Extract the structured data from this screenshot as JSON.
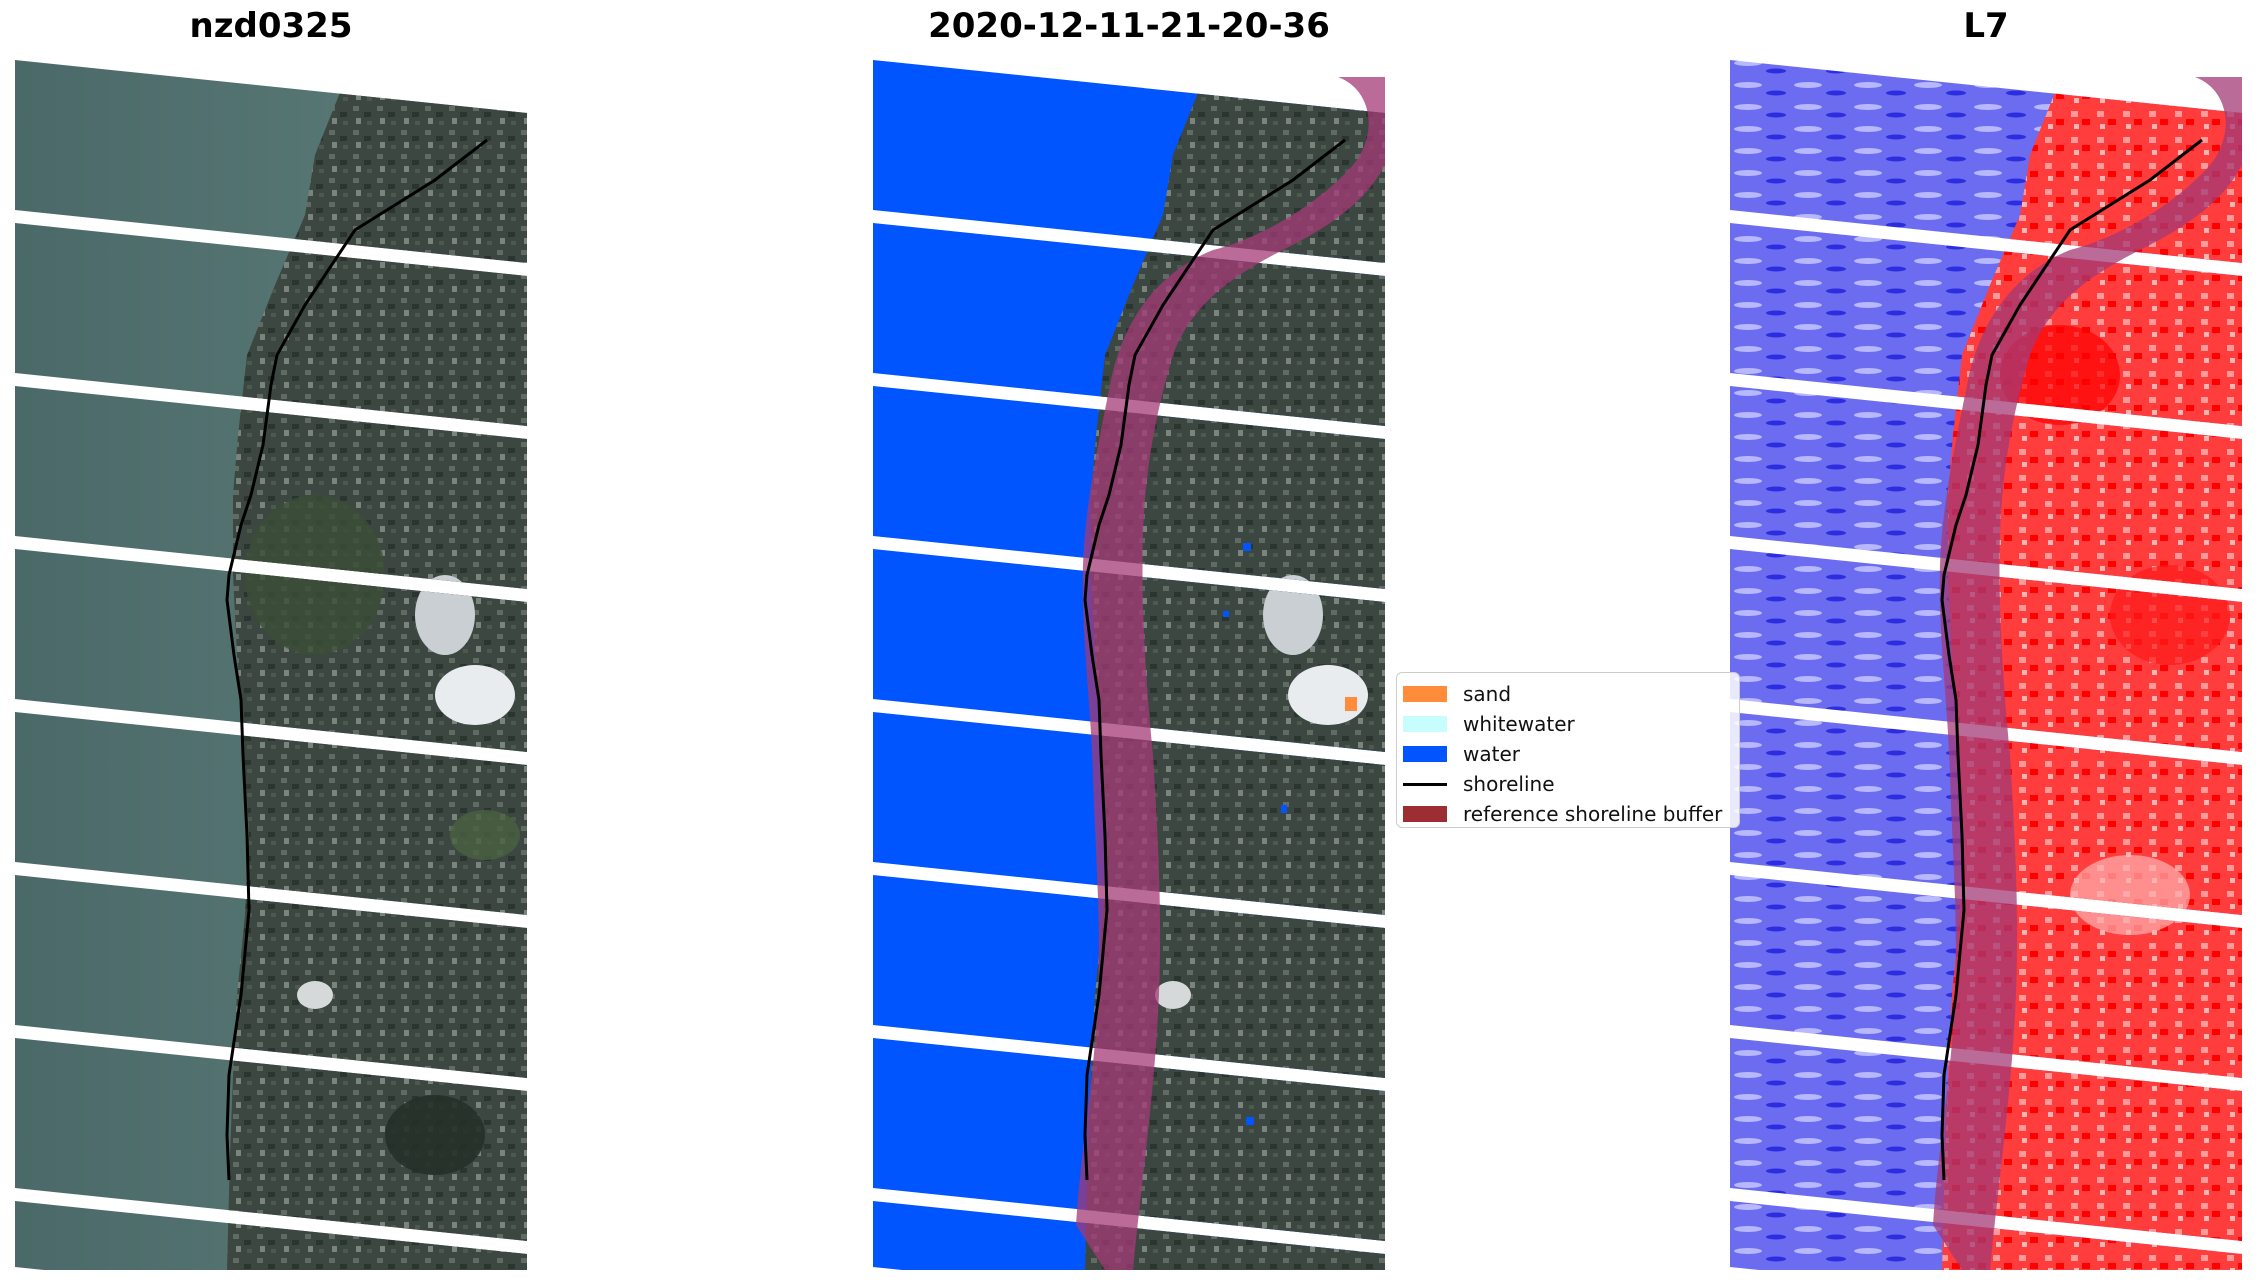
{
  "panels": [
    {
      "title": "nzd0325",
      "kind": "rgb"
    },
    {
      "title": "2020-12-11-21-20-36",
      "kind": "classified"
    },
    {
      "title": "L7",
      "kind": "index"
    }
  ],
  "legend": {
    "items": [
      {
        "label": "sand",
        "type": "patch",
        "color": "#ff8c3a"
      },
      {
        "label": "whitewater",
        "type": "patch",
        "color": "#c8fdfd"
      },
      {
        "label": "water",
        "type": "patch",
        "color": "#0055ff"
      },
      {
        "label": "shoreline",
        "type": "line",
        "color": "#000000"
      },
      {
        "label": "reference shoreline buffer",
        "type": "patch",
        "color": "#9b2d33"
      }
    ]
  }
}
